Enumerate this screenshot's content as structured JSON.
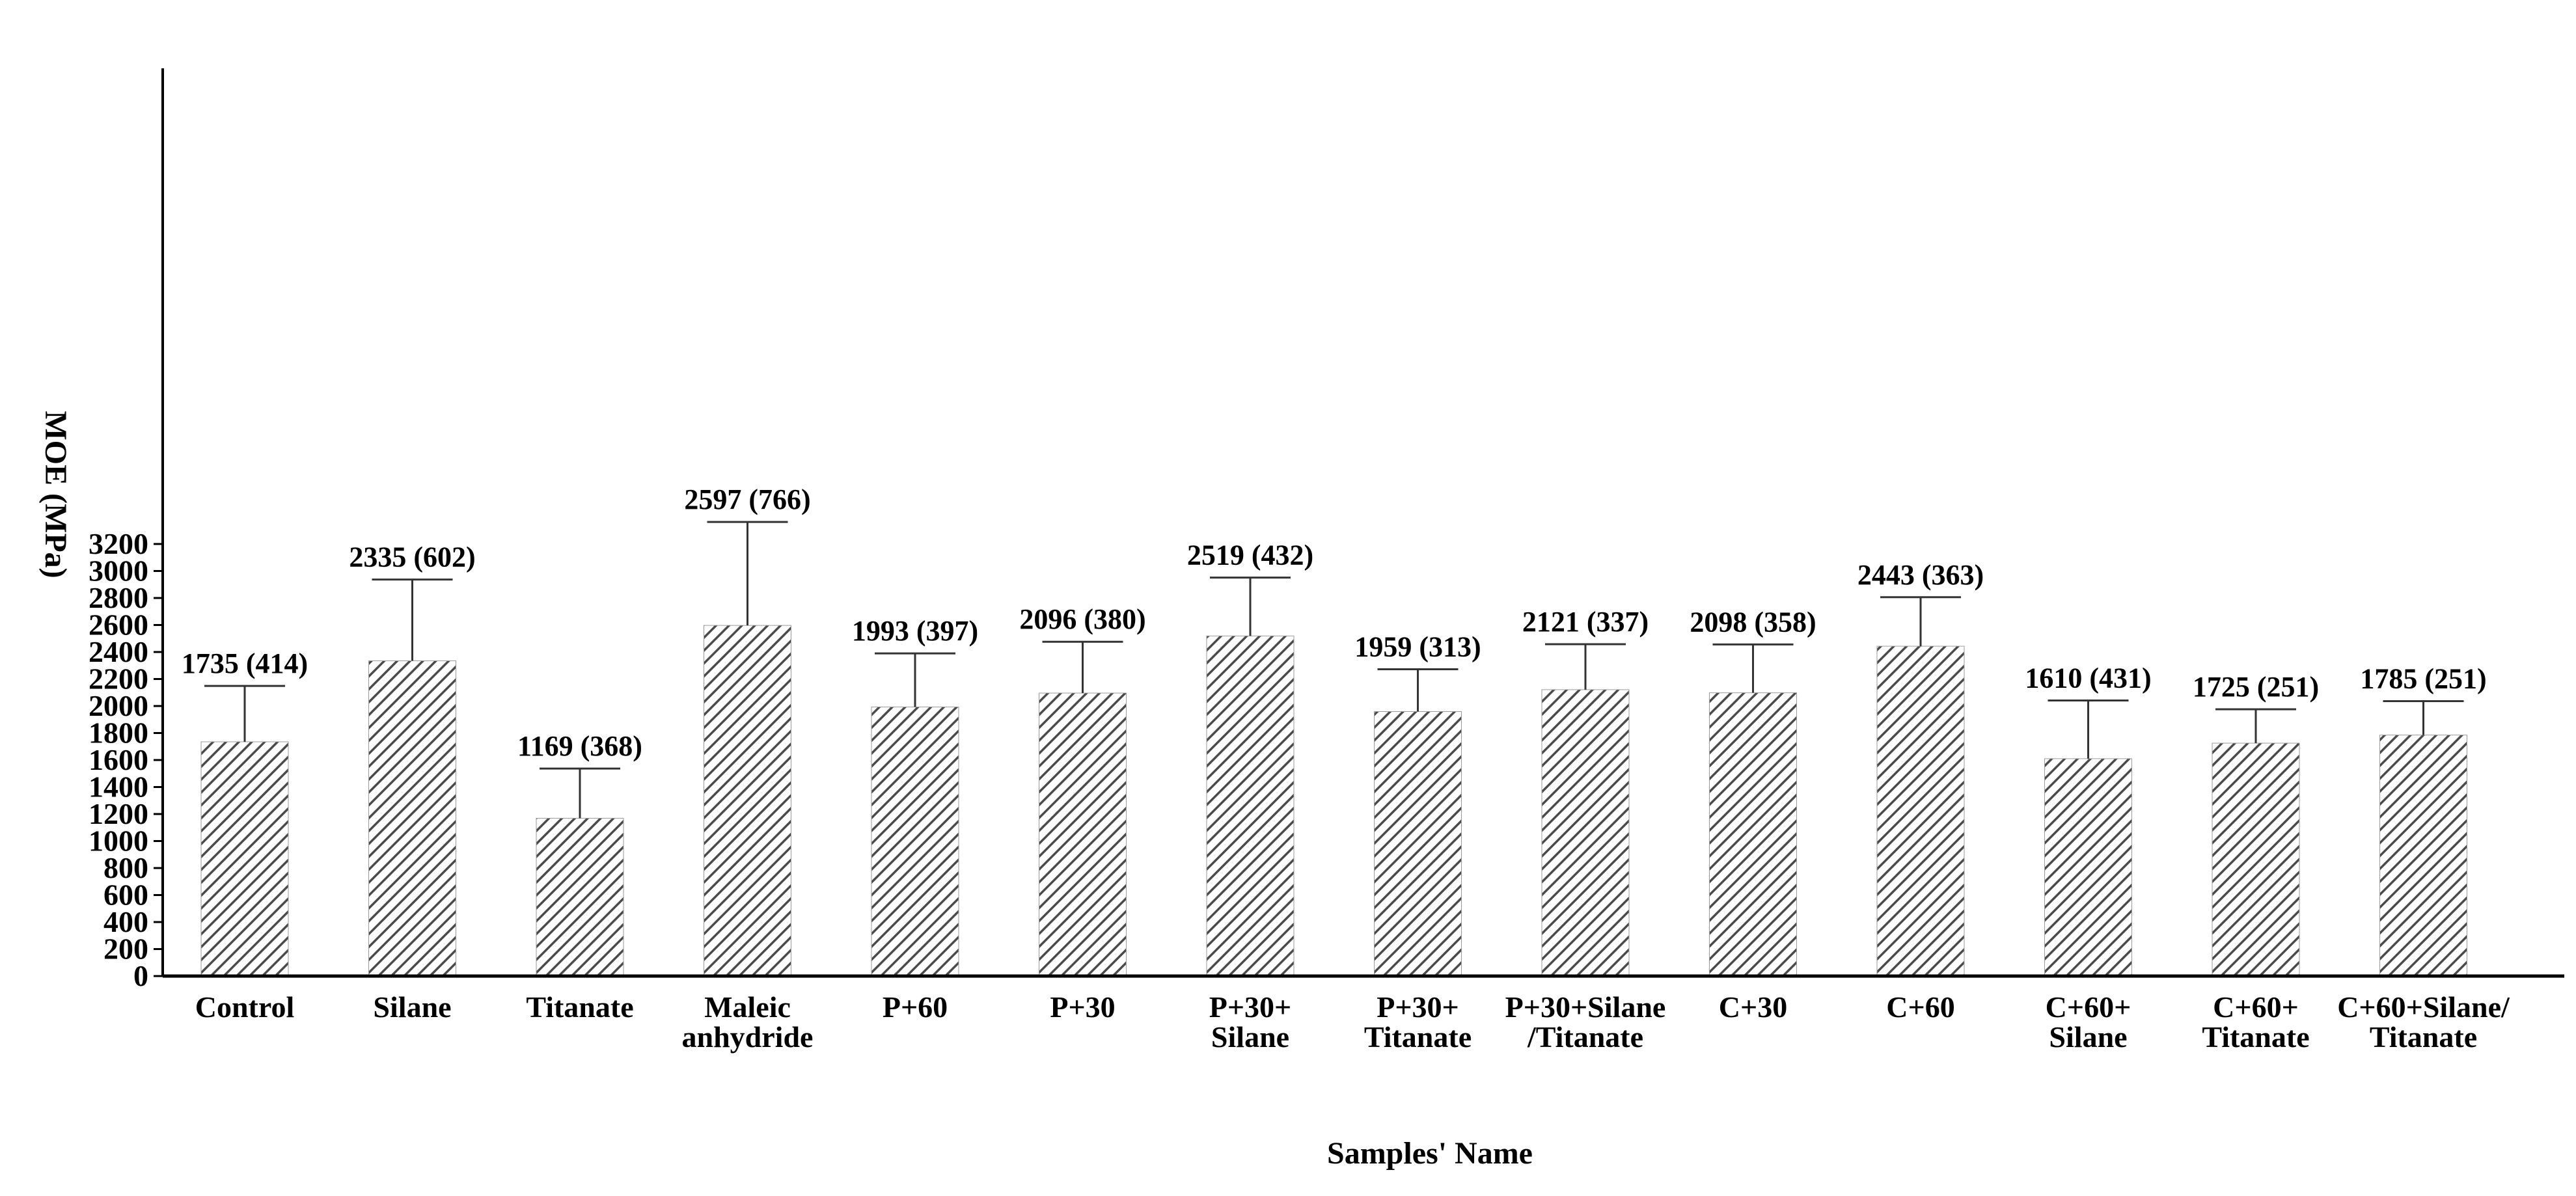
{
  "chart_data": {
    "type": "bar",
    "xlabel": "Samples' Name",
    "ylabel": "MOE (MPa)",
    "ylim": [
      0,
      3400
    ],
    "yticks": [
      0,
      200,
      400,
      600,
      800,
      1000,
      1200,
      1400,
      1600,
      1800,
      2000,
      2200,
      2400,
      2600,
      2800,
      3000,
      3200
    ],
    "grid": false,
    "bar_fill": "diagonal-hatch",
    "categories": [
      [
        "Control"
      ],
      [
        "Silane"
      ],
      [
        "Titanate"
      ],
      [
        "Maleic",
        "anhydride"
      ],
      [
        "P+60"
      ],
      [
        "P+30"
      ],
      [
        "P+30+",
        "Silane"
      ],
      [
        "P+30+",
        "Titanate"
      ],
      [
        "P+30+Silane",
        "/Titanate"
      ],
      [
        "C+30"
      ],
      [
        "C+60"
      ],
      [
        "C+60+",
        "Silane"
      ],
      [
        "C+60+",
        "Titanate"
      ],
      [
        "C+60+Silane/",
        "Titanate"
      ]
    ],
    "values": [
      1735,
      2335,
      1169,
      2597,
      1993,
      2096,
      2519,
      1959,
      2121,
      2098,
      2443,
      1610,
      1725,
      1785
    ],
    "errors": [
      414,
      602,
      368,
      766,
      397,
      380,
      432,
      313,
      337,
      358,
      363,
      431,
      251,
      251
    ],
    "data_labels": [
      "1735 (414)",
      "2335 (602)",
      "1169 (368)",
      "2597 (766)",
      "1993 (397)",
      "2096 (380)",
      "2519 (432)",
      "1959 (313)",
      "2121 (337)",
      "2098 (358)",
      "2443 (363)",
      "1610 (431)",
      "1725 (251)",
      "1785 (251)"
    ]
  },
  "colors": {
    "axis": "#000000",
    "hatch": "#4a4a4a",
    "error_bar": "#333333",
    "background": "#ffffff"
  }
}
